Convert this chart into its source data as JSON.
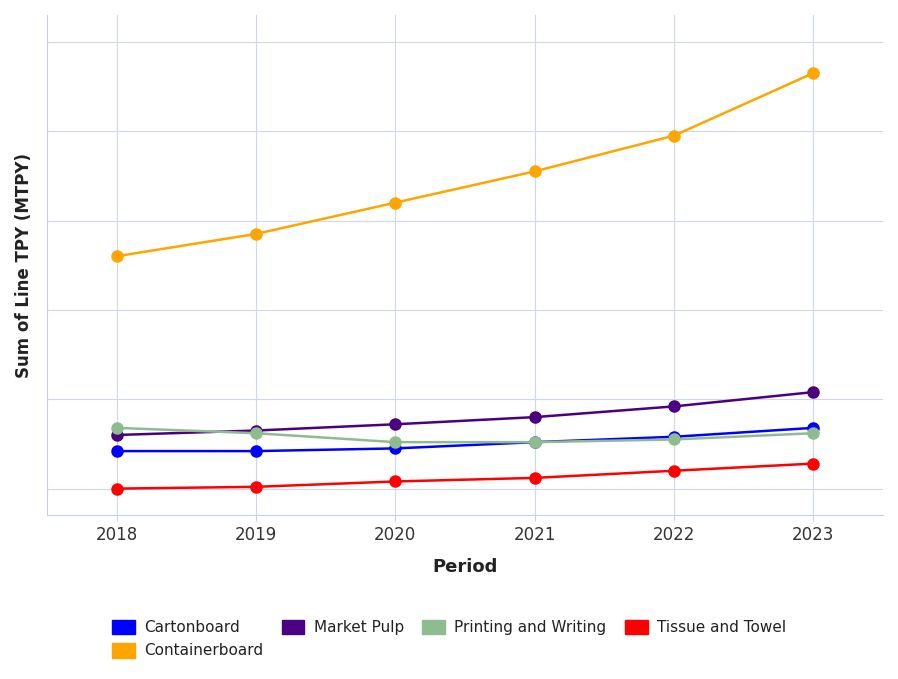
{
  "years": [
    2018,
    2019,
    2020,
    2021,
    2022,
    2023
  ],
  "series": {
    "Cartonboard": {
      "values": [
        14.2,
        14.2,
        14.5,
        15.2,
        15.8,
        16.8
      ],
      "color": "#0000FF"
    },
    "Containerboard": {
      "values": [
        36.0,
        38.5,
        42.0,
        45.5,
        49.5,
        56.5
      ],
      "color": "#FFA500"
    },
    "Market Pulp": {
      "values": [
        16.0,
        16.5,
        17.2,
        18.0,
        19.2,
        20.8
      ],
      "color": "#4B0082"
    },
    "Printing and Writing": {
      "values": [
        16.8,
        16.2,
        15.2,
        15.2,
        15.5,
        16.2
      ],
      "color": "#8FBC8F"
    },
    "Tissue and Towel": {
      "values": [
        10.0,
        10.2,
        10.8,
        11.2,
        12.0,
        12.8
      ],
      "color": "#FF0000"
    }
  },
  "xlabel": "Period",
  "ylabel": "Sum of Line TPY (MTPY)",
  "background_color": "#FFFFFF",
  "grid_color": "#D0D8E8",
  "axis_line_color": "#C8D0DC",
  "marker_size": 8,
  "line_width": 1.8,
  "ylim": [
    7,
    63
  ],
  "xlim": [
    2017.5,
    2023.5
  ],
  "legend_order": [
    "Cartonboard",
    "Containerboard",
    "Market Pulp",
    "Printing and Writing",
    "Tissue and Towel"
  ],
  "legend_ncol": 4,
  "xlabel_fontsize": 13,
  "ylabel_fontsize": 12,
  "tick_fontsize": 12
}
